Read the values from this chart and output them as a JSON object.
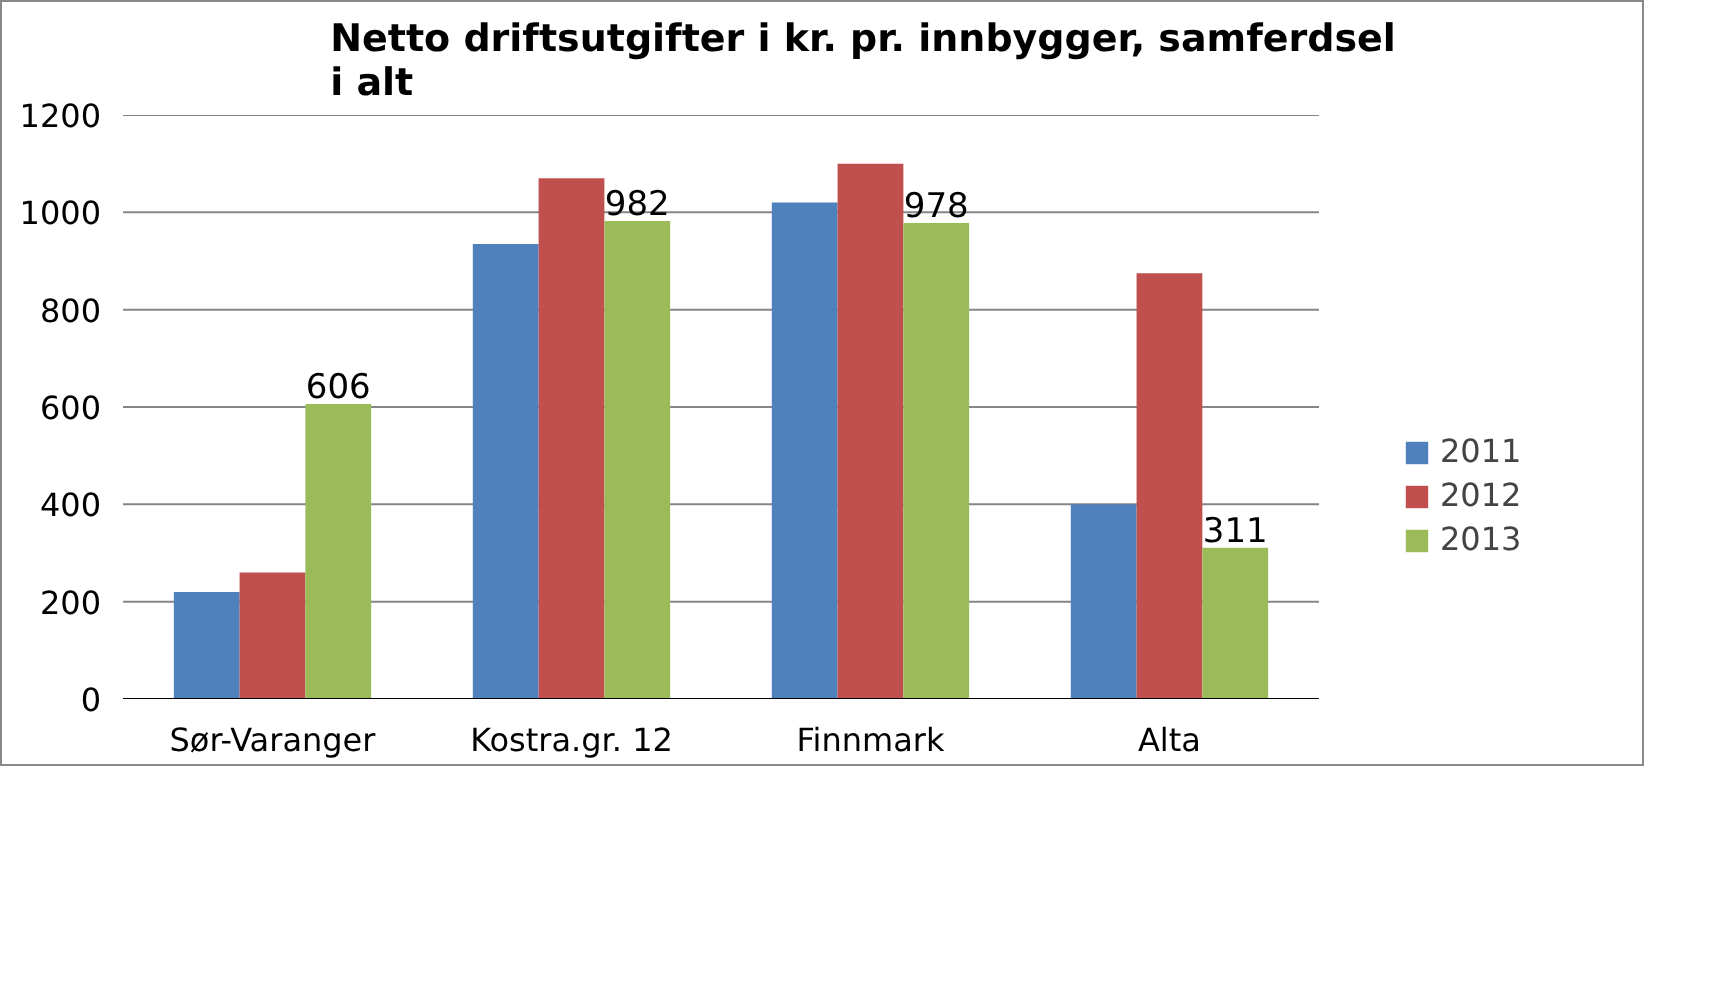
{
  "chart_data": {
    "type": "bar",
    "title": "Netto driftsutgifter i kr. pr. innbygger, samferdsel i alt",
    "categories": [
      "Sør-Varanger",
      "Kostra.gr. 12",
      "Finnmark",
      "Alta"
    ],
    "series": [
      {
        "name": "2011",
        "color": "#4f81bd",
        "values": [
          220,
          935,
          1020,
          400
        ]
      },
      {
        "name": "2012",
        "color": "#c0504d",
        "values": [
          260,
          1070,
          1100,
          875
        ]
      },
      {
        "name": "2013",
        "color": "#9bbb59",
        "values": [
          606,
          982,
          978,
          311
        ],
        "value_labels": [
          "606",
          "982",
          "978",
          "311"
        ]
      }
    ],
    "ylim": [
      0,
      1200
    ],
    "yticks": [
      0,
      200,
      400,
      600,
      800,
      1000,
      1200
    ],
    "grid": "y",
    "legend": "right"
  }
}
